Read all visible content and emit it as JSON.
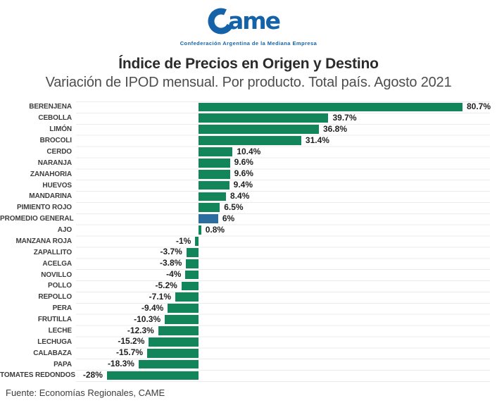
{
  "logo": {
    "name": "Came",
    "tagline": "Confederación Argentina de la Mediana Empresa",
    "brand_color": "#1463A8"
  },
  "header": {
    "title": "Índice de Precios en Origen y Destino",
    "subtitle": "Variación de IPOD mensual. Por producto. Total país. Agosto 2021"
  },
  "chart_data": {
    "type": "bar",
    "orientation": "horizontal",
    "unit": "%",
    "xlim": [
      -28,
      80.7
    ],
    "grid": true,
    "legend": "none",
    "xlabel": "",
    "ylabel": "",
    "bar_color": "#12865A",
    "highlight_color": "#2D6C9E",
    "highlight_category": "PROMEDIO GENERAL",
    "categories": [
      "BERENJENA",
      "CEBOLLA",
      "LIMÓN",
      "BROCOLI",
      "CERDO",
      "NARANJA",
      "ZANAHORIA",
      "HUEVOS",
      "MANDARINA",
      "PIMIENTO ROJO",
      "PROMEDIO GENERAL",
      "AJO",
      "MANZANA ROJA",
      "ZAPALLITO",
      "ACELGA",
      "NOVILLO",
      "POLLO",
      "REPOLLO",
      "PERA",
      "FRUTILLA",
      "LECHE",
      "LECHUGA",
      "CALABAZA",
      "PAPA",
      "TOMATES REDONDOS"
    ],
    "values": [
      80.7,
      39.7,
      36.8,
      31.4,
      10.4,
      9.6,
      9.6,
      9.4,
      8.4,
      6.5,
      6,
      0.8,
      -1,
      -3.7,
      -3.8,
      -4,
      -5.2,
      -7.1,
      -9.4,
      -10.3,
      -12.3,
      -15.2,
      -15.7,
      -18.3,
      -28
    ],
    "value_labels": [
      "80.7%",
      "39.7%",
      "36.8%",
      "31.4%",
      "10.4%",
      "9.6%",
      "9.6%",
      "9.4%",
      "8.4%",
      "6.5%",
      "6%",
      "0.8%",
      "-1%",
      "-3.7%",
      "-3.8%",
      "-4%",
      "-5.2%",
      "-7.1%",
      "-9.4%",
      "-10.3%",
      "-12.3%",
      "-15.2%",
      "-15.7%",
      "-18.3%",
      "-28%"
    ]
  },
  "footer": {
    "source": "Fuente: Economías Regionales, CAME"
  }
}
